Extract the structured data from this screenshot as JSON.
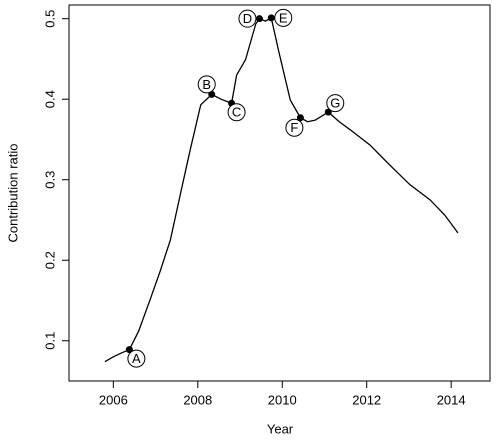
{
  "chart_data": {
    "type": "line",
    "x_label": "Year",
    "y_label": "Contribution ratio",
    "xlim": [
      2004.95,
      2014.92
    ],
    "ylim": [
      0.05,
      0.517
    ],
    "xticks": [
      2006,
      2008,
      2010,
      2012,
      2014
    ],
    "yticks": [
      0.1,
      0.2,
      0.3,
      0.4,
      0.5
    ],
    "series": [
      {
        "color": "#000000",
        "x": [
          2005.8,
          2006.0,
          2006.2,
          2006.38,
          2006.6,
          2006.87,
          2007.1,
          2007.35,
          2007.6,
          2007.82,
          2008.07,
          2008.33,
          2008.55,
          2008.8,
          2008.92,
          2009.13,
          2009.37,
          2009.46,
          2009.6,
          2009.74,
          2009.91,
          2010.19,
          2010.43,
          2010.6,
          2010.78,
          2011.09,
          2011.35,
          2011.61,
          2012.08,
          2012.55,
          2013.02,
          2013.5,
          2013.85,
          2014.16
        ],
        "values": [
          0.074,
          0.08,
          0.085,
          0.089,
          0.112,
          0.151,
          0.185,
          0.225,
          0.285,
          0.337,
          0.393,
          0.406,
          0.4,
          0.395,
          0.43,
          0.449,
          0.493,
          0.5,
          0.497,
          0.501,
          0.461,
          0.399,
          0.377,
          0.372,
          0.374,
          0.384,
          0.372,
          0.362,
          0.343,
          0.318,
          0.294,
          0.275,
          0.256,
          0.234
        ]
      }
    ],
    "annotations": [
      {
        "label": "A",
        "x": 2006.38,
        "y": 0.089
      },
      {
        "label": "B",
        "x": 2008.33,
        "y": 0.406
      },
      {
        "label": "C",
        "x": 2008.8,
        "y": 0.395
      },
      {
        "label": "D",
        "x": 2009.46,
        "y": 0.5
      },
      {
        "label": "E",
        "x": 2009.74,
        "y": 0.501
      },
      {
        "label": "F",
        "x": 2010.43,
        "y": 0.377
      },
      {
        "label": "G",
        "x": 2011.09,
        "y": 0.384
      }
    ]
  }
}
